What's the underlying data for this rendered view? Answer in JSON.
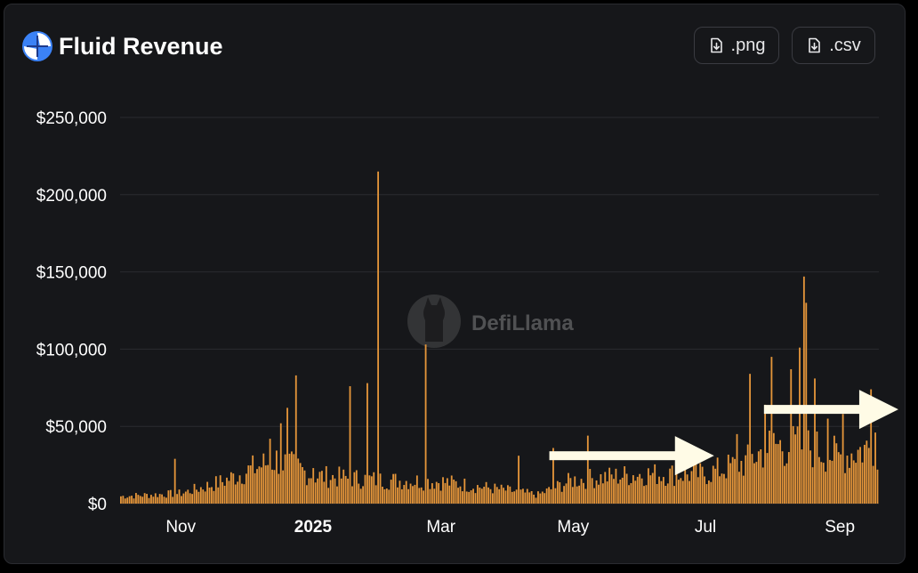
{
  "header": {
    "title": "Fluid Revenue",
    "logo_icon": "fluid-logo-icon",
    "png_label": ".png",
    "csv_label": ".csv",
    "download_icon": "download-file-icon"
  },
  "watermark": {
    "text": "DefiLlama",
    "icon": "llama-icon"
  },
  "colors": {
    "card_bg": "#16171a",
    "bar": "#e4953a",
    "text": "#ffffff",
    "gridline": "#2a2b30",
    "arrow": "#fffbe6",
    "logo": "#3b82f6"
  },
  "chart_data": {
    "type": "bar",
    "title": "Fluid Revenue",
    "xlabel": "",
    "ylabel": "",
    "x_range": [
      "2024-10-04",
      "2025-09-19"
    ],
    "ylim": [
      0,
      250000
    ],
    "y_ticks": [
      "$0",
      "$50,000",
      "$100,000",
      "$150,000",
      "$200,000",
      "$250,000"
    ],
    "y_tick_values": [
      0,
      50000,
      100000,
      150000,
      200000,
      250000
    ],
    "x_ticks": [
      {
        "label": "Nov",
        "date": "2024-11-01"
      },
      {
        "label": "2025",
        "date": "2025-01-01"
      },
      {
        "label": "Mar",
        "date": "2025-03-01"
      },
      {
        "label": "May",
        "date": "2025-05-01"
      },
      {
        "label": "Jul",
        "date": "2025-07-01"
      },
      {
        "label": "Sep",
        "date": "2025-09-01"
      }
    ],
    "grid": true,
    "legend": "none",
    "spikes": [
      {
        "date": "2024-10-29",
        "value": 29000
      },
      {
        "date": "2024-12-12",
        "value": 42000
      },
      {
        "date": "2024-12-17",
        "value": 52000
      },
      {
        "date": "2024-12-20",
        "value": 62000
      },
      {
        "date": "2024-12-24",
        "value": 83000
      },
      {
        "date": "2025-01-01",
        "value": 23000
      },
      {
        "date": "2025-01-18",
        "value": 76000
      },
      {
        "date": "2025-01-26",
        "value": 78000
      },
      {
        "date": "2025-01-31",
        "value": 215000
      },
      {
        "date": "2025-02-22",
        "value": 103000
      },
      {
        "date": "2025-04-06",
        "value": 31000
      },
      {
        "date": "2025-04-22",
        "value": 36000
      },
      {
        "date": "2025-05-08",
        "value": 44000
      },
      {
        "date": "2025-07-16",
        "value": 45000
      },
      {
        "date": "2025-07-22",
        "value": 84000
      },
      {
        "date": "2025-07-29",
        "value": 64000
      },
      {
        "date": "2025-08-01",
        "value": 95000
      },
      {
        "date": "2025-08-10",
        "value": 87000
      },
      {
        "date": "2025-08-14",
        "value": 101000
      },
      {
        "date": "2025-08-16",
        "value": 147000
      },
      {
        "date": "2025-08-17",
        "value": 130000
      },
      {
        "date": "2025-08-21",
        "value": 81000
      },
      {
        "date": "2025-08-27",
        "value": 55000
      },
      {
        "date": "2025-09-03",
        "value": 58000
      },
      {
        "date": "2025-09-16",
        "value": 74000
      },
      {
        "date": "2025-09-18",
        "value": 46000
      }
    ],
    "baseline": [
      {
        "date": "2024-10-04",
        "value": 5000
      },
      {
        "date": "2024-11-01",
        "value": 7000
      },
      {
        "date": "2024-11-20",
        "value": 15000
      },
      {
        "date": "2024-12-01",
        "value": 22000
      },
      {
        "date": "2024-12-15",
        "value": 30000
      },
      {
        "date": "2025-01-01",
        "value": 19000
      },
      {
        "date": "2025-02-01",
        "value": 16000
      },
      {
        "date": "2025-03-01",
        "value": 15000
      },
      {
        "date": "2025-04-01",
        "value": 9000
      },
      {
        "date": "2025-04-15",
        "value": 6000
      },
      {
        "date": "2025-05-01",
        "value": 16000
      },
      {
        "date": "2025-06-01",
        "value": 20000
      },
      {
        "date": "2025-07-01",
        "value": 20000
      },
      {
        "date": "2025-07-20",
        "value": 28000
      },
      {
        "date": "2025-08-01",
        "value": 40000
      },
      {
        "date": "2025-08-20",
        "value": 38000
      },
      {
        "date": "2025-09-01",
        "value": 32000
      },
      {
        "date": "2025-09-19",
        "value": 40000
      }
    ],
    "annotations": [
      {
        "type": "arrow",
        "from": "2025-04-20",
        "to": "2025-07-05",
        "y": 31000
      },
      {
        "type": "arrow",
        "from": "2025-07-28",
        "to": "2025-09-28",
        "y": 61000
      }
    ]
  }
}
